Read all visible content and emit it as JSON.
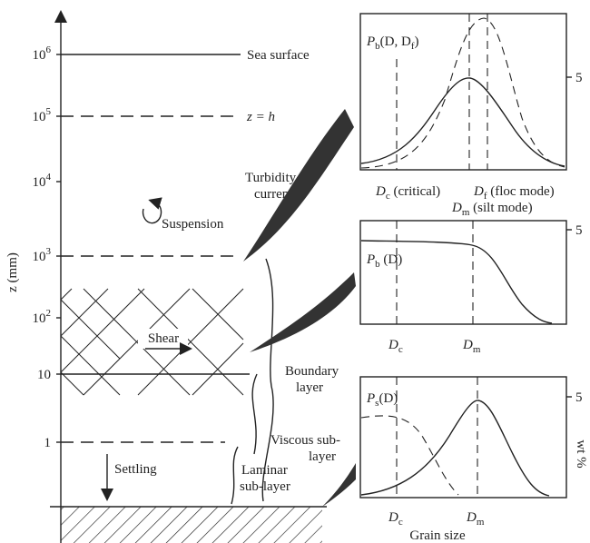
{
  "axis": {
    "label": "z (mm)",
    "ticks": [
      {
        "base": "10",
        "exp": "6"
      },
      {
        "base": "10",
        "exp": "5"
      },
      {
        "base": "10",
        "exp": "4"
      },
      {
        "base": "10",
        "exp": "3"
      },
      {
        "base": "10",
        "exp": "2"
      },
      {
        "base": "10"
      },
      {
        "base": "1"
      }
    ]
  },
  "levels": {
    "sea_surface": "Sea surface",
    "z_h": "z = h"
  },
  "labels": {
    "turbidity_current": [
      "Turbidity",
      "current"
    ],
    "suspension": "Suspension",
    "shear": "Shear",
    "boundary_layer": [
      "Boundary",
      "layer"
    ],
    "viscous_sublayer": [
      "Viscous sub-",
      "layer"
    ],
    "laminar_sublayer": [
      "Laminar",
      "sub-layer"
    ],
    "settling": "Settling"
  },
  "panels": [
    {
      "title": [
        "P",
        "b",
        "(D, D",
        "f",
        ")"
      ],
      "tick": "5",
      "markers": [
        [
          "D",
          "c",
          " (critical)"
        ],
        [
          "D",
          "f",
          " (floc mode)"
        ],
        [
          "D",
          "m",
          " (silt mode)"
        ]
      ]
    },
    {
      "title": [
        "P",
        "b",
        " (D)"
      ],
      "tick": "5",
      "markers": [
        [
          "D",
          "c"
        ],
        [
          "D",
          "m"
        ]
      ]
    },
    {
      "title": [
        "P",
        "s",
        "(D)"
      ],
      "tick": "5",
      "markers": [
        [
          "D",
          "c"
        ],
        [
          "D",
          "m"
        ]
      ]
    }
  ],
  "y_label": "wt %",
  "x_label": "Grain size"
}
